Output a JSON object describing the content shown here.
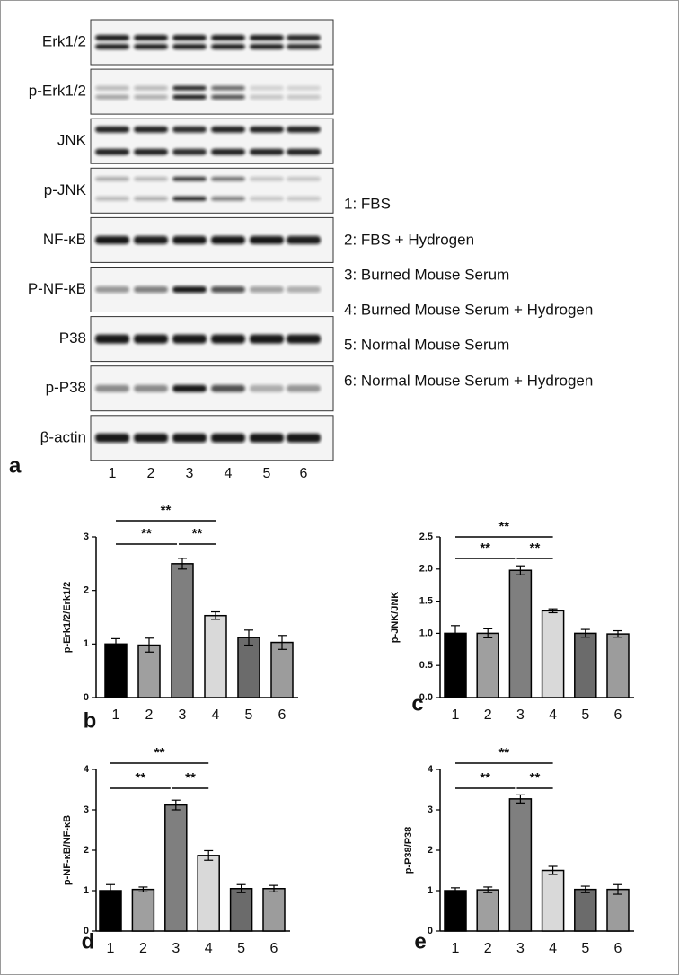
{
  "blot": {
    "panel_label": "a",
    "rows": [
      "Erk1/2",
      "p-Erk1/2",
      "JNK",
      "p-JNK",
      "NF-κB",
      "P-NF-κB",
      "P38",
      "p-P38",
      "β-actin"
    ],
    "lanes": [
      "1",
      "2",
      "3",
      "4",
      "5",
      "6"
    ],
    "legend": [
      "1: FBS",
      "2: FBS + Hydrogen",
      "3: Burned Mouse Serum",
      "4: Burned Mouse Serum + Hydrogen",
      "5: Normal Mouse Serum",
      "6: Normal Mouse Serum + Hydrogen"
    ]
  },
  "chart_data": [
    {
      "type": "bar",
      "label": "b",
      "y_label": "p-Erk1/2/Erk1/2",
      "categories": [
        "1",
        "2",
        "3",
        "4",
        "5",
        "6"
      ],
      "values": [
        1.0,
        0.98,
        2.5,
        1.53,
        1.12,
        1.03
      ],
      "errors": [
        0.1,
        0.13,
        0.1,
        0.07,
        0.14,
        0.13
      ],
      "colors": [
        "#000000",
        "#9f9f9f",
        "#7f7f7f",
        "#d9d9d9",
        "#6b6b6b",
        "#9c9c9c"
      ],
      "ylim": [
        0,
        3
      ],
      "yticks": [
        0,
        1,
        2,
        3
      ],
      "annotations": [
        "**",
        "**",
        "**"
      ]
    },
    {
      "type": "bar",
      "label": "c",
      "y_label": "p-JNK/JNK",
      "categories": [
        "1",
        "2",
        "3",
        "4",
        "5",
        "6"
      ],
      "values": [
        1.0,
        1.0,
        1.98,
        1.35,
        1.0,
        0.99
      ],
      "errors": [
        0.12,
        0.07,
        0.07,
        0.03,
        0.06,
        0.05
      ],
      "colors": [
        "#000000",
        "#9f9f9f",
        "#7f7f7f",
        "#d9d9d9",
        "#6b6b6b",
        "#9c9c9c"
      ],
      "ylim": [
        0,
        2.5
      ],
      "yticks": [
        {
          "value": 0,
          "label": "0.0"
        },
        {
          "value": 0.5,
          "label": "0.5"
        },
        {
          "value": 1,
          "label": "1.0"
        },
        1.5,
        {
          "value": 2,
          "label": "2.0"
        },
        2.5
      ],
      "annotations": [
        "**",
        "**",
        "**"
      ]
    },
    {
      "type": "bar",
      "label": "d",
      "y_label": "p-NF-κB/NF-κB",
      "categories": [
        "1",
        "2",
        "3",
        "4",
        "5",
        "6"
      ],
      "values": [
        1.0,
        1.03,
        3.12,
        1.87,
        1.05,
        1.05
      ],
      "errors": [
        0.15,
        0.06,
        0.12,
        0.12,
        0.1,
        0.08
      ],
      "colors": [
        "#000000",
        "#9f9f9f",
        "#7f7f7f",
        "#d9d9d9",
        "#6b6b6b",
        "#9c9c9c"
      ],
      "ylim": [
        0,
        4
      ],
      "yticks": [
        0,
        1,
        2,
        3,
        4
      ],
      "annotations": [
        "**",
        "**",
        "**"
      ]
    },
    {
      "type": "bar",
      "label": "e",
      "y_label": "p-P38/P38",
      "categories": [
        "1",
        "2",
        "3",
        "4",
        "5",
        "6"
      ],
      "values": [
        1.0,
        1.02,
        3.27,
        1.5,
        1.03,
        1.03
      ],
      "errors": [
        0.07,
        0.07,
        0.1,
        0.1,
        0.08,
        0.12
      ],
      "colors": [
        "#000000",
        "#9f9f9f",
        "#7f7f7f",
        "#d9d9d9",
        "#6b6b6b",
        "#9c9c9c"
      ],
      "ylim": [
        0,
        4
      ],
      "yticks": [
        0,
        1,
        2,
        3,
        4
      ],
      "annotations": [
        "**",
        "**",
        "**"
      ]
    }
  ]
}
